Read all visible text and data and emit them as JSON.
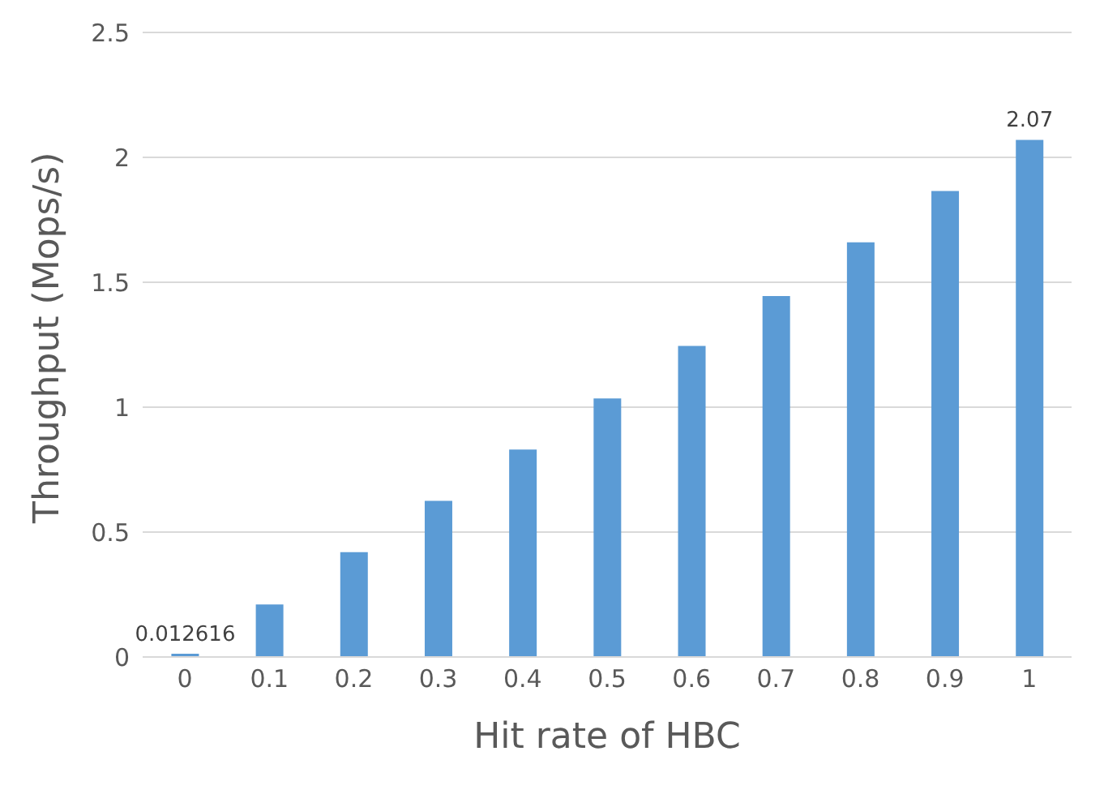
{
  "chart_data": {
    "type": "bar",
    "xlabel": "Hit rate of HBC",
    "ylabel": "Throughput (Mops/s)",
    "categories": [
      "0",
      "0.1",
      "0.2",
      "0.3",
      "0.4",
      "0.5",
      "0.6",
      "0.7",
      "0.8",
      "0.9",
      "1"
    ],
    "series": [
      {
        "color": "#5b9bd5",
        "values": [
          0.012616,
          0.21,
          0.42,
          0.625,
          0.83,
          1.035,
          1.245,
          1.445,
          1.66,
          1.865,
          2.07
        ],
        "value_labels": [
          "0.012616",
          null,
          null,
          null,
          null,
          null,
          null,
          null,
          null,
          null,
          "2.07"
        ]
      }
    ],
    "ylim": [
      0,
      2.5
    ],
    "yticks": [
      0,
      0.5,
      1,
      1.5,
      2,
      2.5
    ],
    "grid": "y",
    "legend": false
  }
}
